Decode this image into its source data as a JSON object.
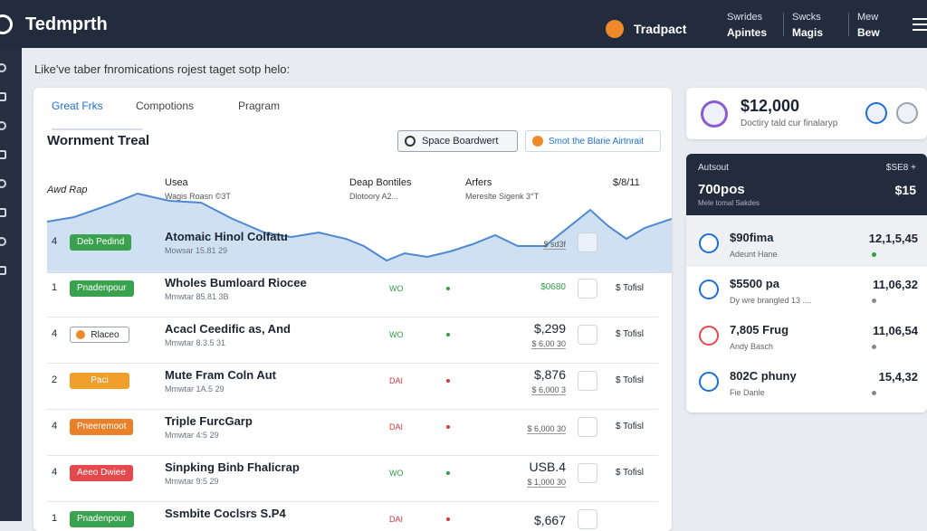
{
  "header": {
    "brand": "Tedmprth",
    "account": "Tradpact",
    "nav": [
      {
        "top": "Swrides",
        "bottom": "Apintes"
      },
      {
        "top": "Swcks",
        "bottom": "Magis"
      },
      {
        "top": "Mew",
        "bottom": "Bew"
      }
    ]
  },
  "subtitle": "Like've taber fnromications rojest taget sotp helo:",
  "main": {
    "tabs": [
      "Great Frks",
      "Compotions",
      "Pragram"
    ],
    "title": "Wornment Treal",
    "buttons": [
      "Space Boardwert",
      "Smot the Blarie Airtnrait"
    ],
    "columns": [
      {
        "title": "Awd Rap"
      },
      {
        "title": "Usea",
        "sub": "Wagis Roasn ©3T"
      },
      {
        "title": "Deap Bontiles",
        "sub": "Dlotoory A2..."
      },
      {
        "title": "Arfers",
        "sub": "Mereslte Sigenk 3°T"
      },
      {
        "title": "$/8/11"
      }
    ],
    "rows": [
      {
        "rank": "4",
        "badge": "Deb Pedind",
        "badge_color": "#3aa24f",
        "name": "Atomaic Hinol Colfatu",
        "sub": "Mowsar 15.81 29",
        "amount_sub": "$ sd3f"
      },
      {
        "rank": "1",
        "badge": "Pnadenpour",
        "badge_color": "#3aa24f",
        "name": "Wholes Bumloard Riocee",
        "sub": "Mmwtar 85.81 3B",
        "status": "WO",
        "status_color": "#2f9e44",
        "amount": "$0680",
        "amount_color": "#2f9e44",
        "action": "$ Tofisl"
      },
      {
        "rank": "4",
        "badge": "Rlaceo",
        "badge_color": "#ffffff",
        "name": "Acacl Ceedific as, And",
        "sub": "Mmwtar 8.3.5 31",
        "status": "WO",
        "status_color": "#2f9e44",
        "amount": "$,299",
        "amount_sub": "$ 6,00 30",
        "action": "$ Tofisl"
      },
      {
        "rank": "2",
        "badge": "Paci",
        "badge_color": "#f0a02a",
        "name": "Mute Fram Coln Aut",
        "sub": "Mmwtar 1A.5 29",
        "status": "DAI",
        "status_color": "#d9363e",
        "amount": "$,876",
        "amount_sub": "$ 6,000 3",
        "action": "$ Tofisl"
      },
      {
        "rank": "4",
        "badge": "Pneeremoot",
        "badge_color": "#e9812b",
        "name": "Triple FurcGarp",
        "sub": "Mmwtar 4:5 29",
        "status": "DAI",
        "status_color": "#d9363e",
        "amount_sub": "$ 6,000 30",
        "action": "$ Tofisl"
      },
      {
        "rank": "4",
        "badge": "Aeeo Dwiee",
        "badge_color": "#e5484d",
        "name": "Sinpking Binb Fhalicrap",
        "sub": "Mmwtar 9:5 29",
        "status": "WO",
        "status_color": "#2f9e44",
        "amount": "USB.4",
        "amount_sub": "$ 1,000 30",
        "action": "$ Tofisl"
      },
      {
        "rank": "1",
        "badge": "Pnadenpour",
        "badge_color": "#3aa24f",
        "name": "Ssmbite Coclsrs S.P4",
        "status": "DAI",
        "status_color": "#d9363e",
        "amount": "$,667"
      }
    ]
  },
  "side": {
    "summary": {
      "amount": "$12,000",
      "caption": "Doctiry tald cur finalaryp"
    },
    "account": {
      "label": "Autsout",
      "value": "700pos",
      "caption": "Mele tomal Sakdes",
      "right_top": "$SE8 +",
      "right_value": "$15"
    },
    "list": [
      {
        "title": "$90fima",
        "sub": "Adeunt Hane",
        "value": "12,1,5,45",
        "icon_color": "#1d6fd8"
      },
      {
        "title": "$5500 pa",
        "sub": "Dy wre brangled 13 ....",
        "value": "11,06,32",
        "icon_color": "#1d6fd8"
      },
      {
        "title": "7,805 Frug",
        "sub": "Andy Basch",
        "value": "11,06,54",
        "icon_color": "#e5484d"
      },
      {
        "title": "802C phuny",
        "sub": "Fie Danle",
        "value": "15,4,32",
        "icon_color": "#1d6fd8"
      }
    ]
  }
}
